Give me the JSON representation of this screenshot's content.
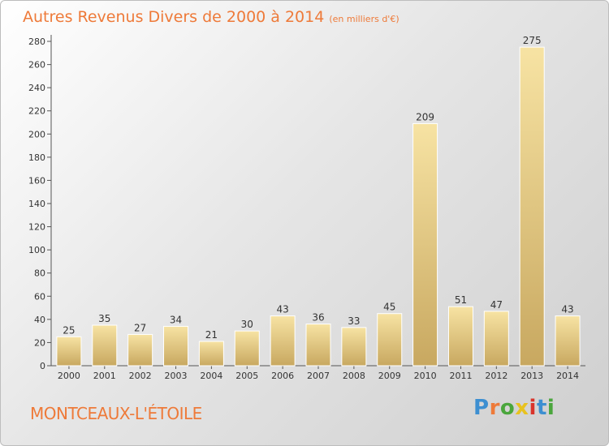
{
  "title": "Autres Revenus Divers de 2000 à 2014",
  "subtitle": "(en milliers d'€)",
  "commune": "MONTCEAUX-L'ÉTOILE",
  "brand": {
    "text": "Proxiti",
    "colors": [
      "#3d8fd1",
      "#ee7a39",
      "#4aa63c",
      "#e8c21f",
      "#d9342b",
      "#3d8fd1",
      "#4aa63c"
    ]
  },
  "colors": {
    "accent": "#ee7a39",
    "bar_light": "#f7e3a3",
    "bar_dark": "#c8a860",
    "axis": "#555555"
  },
  "chart_data": {
    "type": "bar",
    "categories": [
      "2000",
      "2001",
      "2002",
      "2003",
      "2004",
      "2005",
      "2006",
      "2007",
      "2008",
      "2009",
      "2010",
      "2011",
      "2012",
      "2013",
      "2014"
    ],
    "values": [
      25,
      35,
      27,
      34,
      21,
      30,
      43,
      36,
      33,
      45,
      209,
      51,
      47,
      275,
      43
    ],
    "yticks": [
      0,
      20,
      40,
      60,
      80,
      100,
      120,
      140,
      160,
      180,
      200,
      220,
      240,
      260,
      280
    ],
    "ylim": [
      0,
      280
    ],
    "grid": false,
    "legend": "none"
  }
}
